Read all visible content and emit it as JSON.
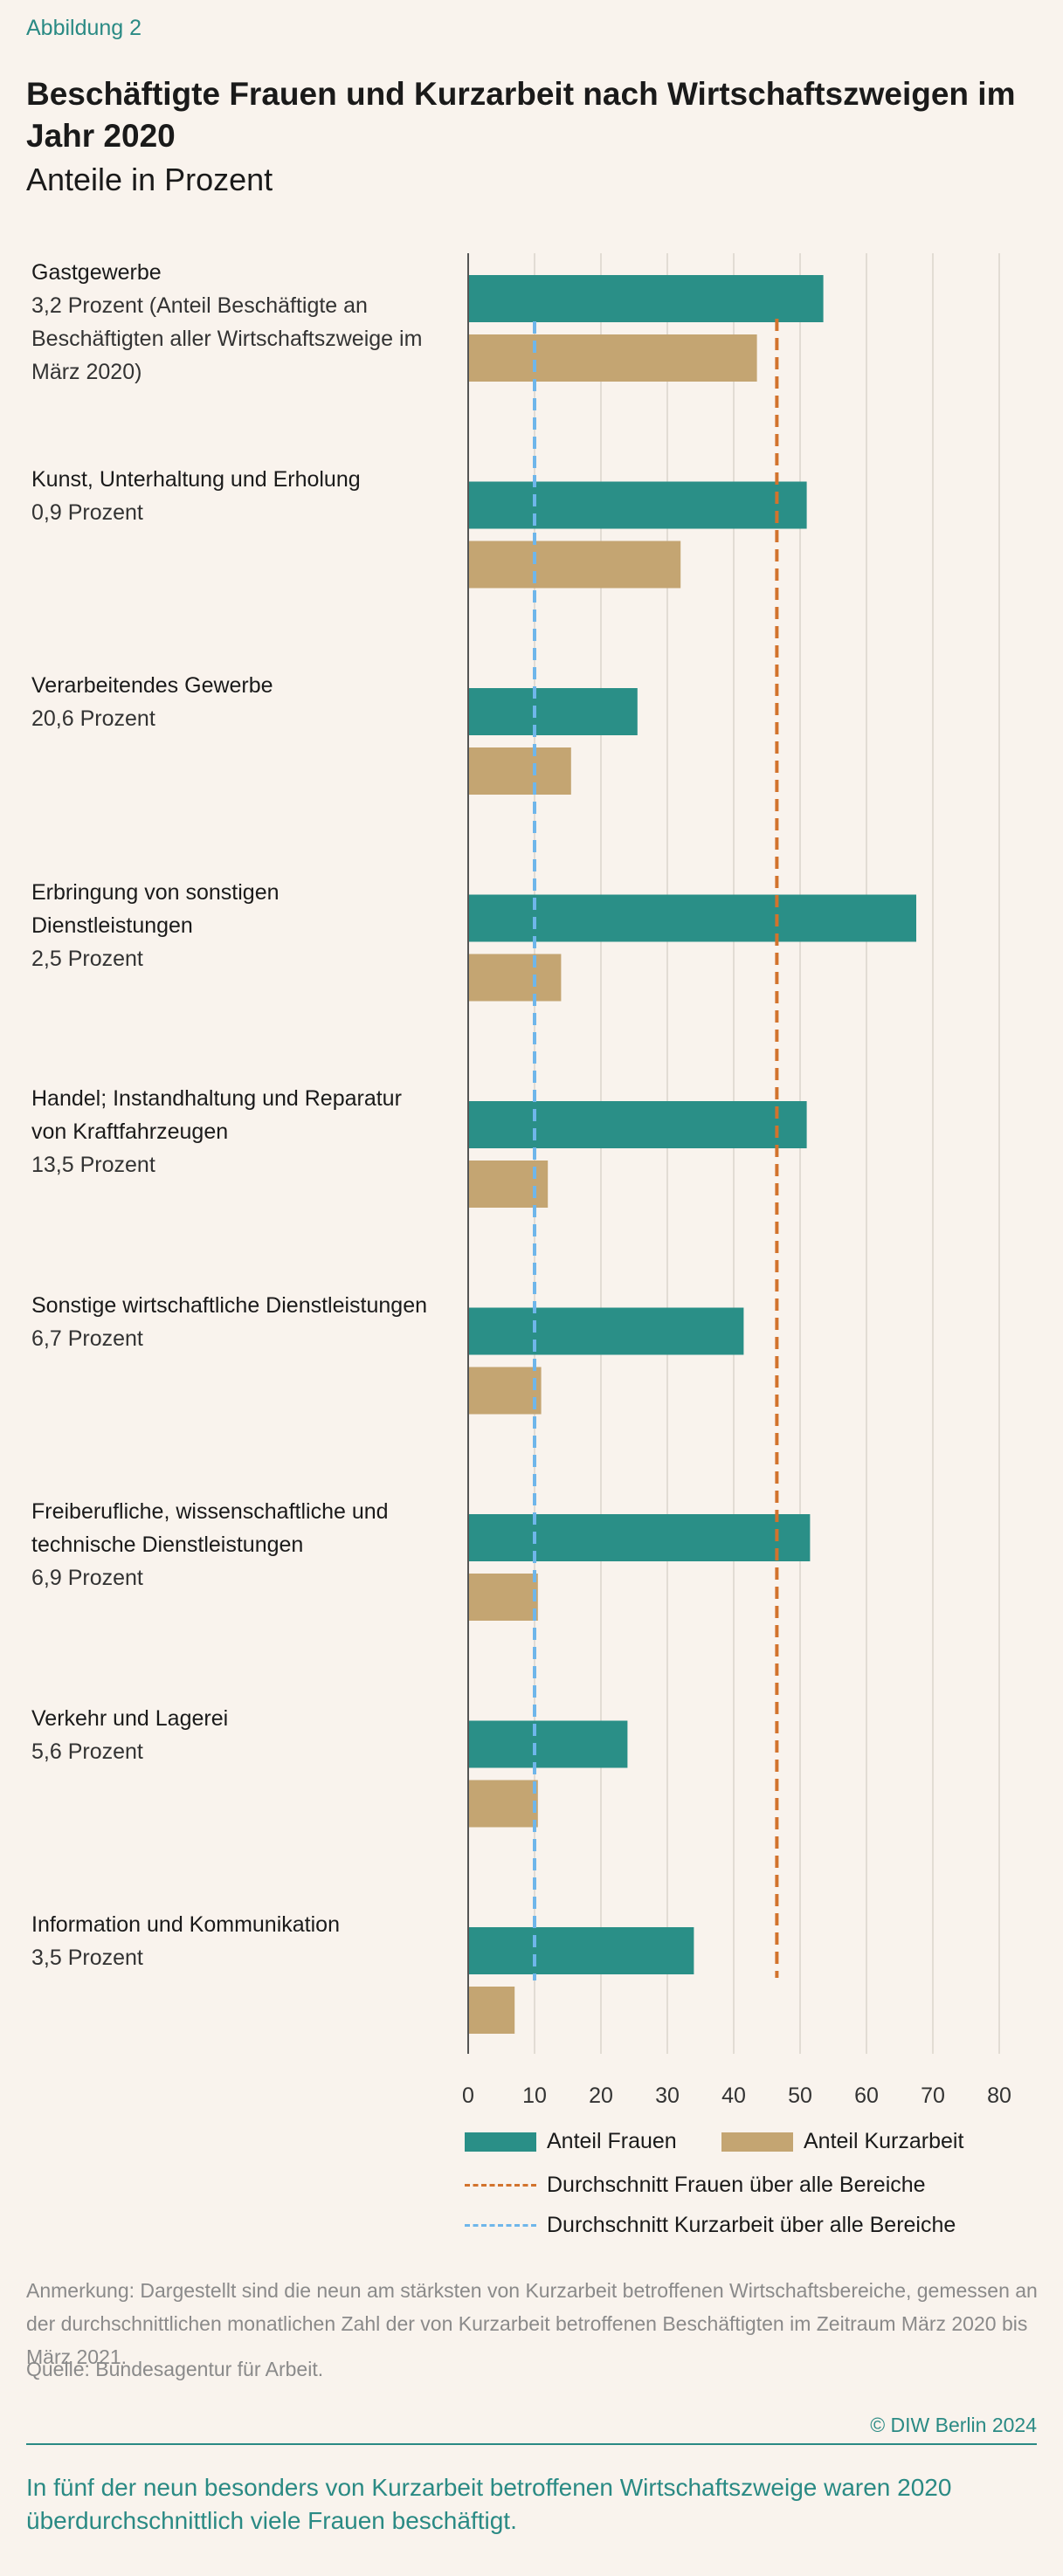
{
  "figure_label": "Abbildung 2",
  "title": "Beschäftigte Frauen und Kurzarbeit nach Wirtschaftszweigen im Jahr 2020",
  "subtitle": "Anteile in Prozent",
  "chart_data": {
    "type": "bar",
    "orientation": "horizontal",
    "categories": [
      {
        "name": "Gastgewerbe",
        "share": "3,2 Prozent (Anteil Beschäftigte an Beschäftigten aller Wirtschaftszweige im März 2020)"
      },
      {
        "name": "Kunst, Unterhaltung und Erholung",
        "share": "0,9 Prozent"
      },
      {
        "name": "Verarbeitendes Gewerbe",
        "share": "20,6 Prozent"
      },
      {
        "name": "Erbringung von sonstigen Dienstleistungen",
        "share": "2,5 Prozent"
      },
      {
        "name": "Handel; Instandhaltung und Reparatur von Kraftfahrzeugen",
        "share": "13,5 Prozent"
      },
      {
        "name": "Sonstige wirtschaftliche Dienstleistungen",
        "share": "6,7 Prozent"
      },
      {
        "name": "Freiberufliche, wissenschaftliche und technische Dienstleistungen",
        "share": "6,9 Prozent"
      },
      {
        "name": "Verkehr und Lagerei",
        "share": "5,6 Prozent"
      },
      {
        "name": "Information und Kommunikation",
        "share": "3,5 Prozent"
      }
    ],
    "series": [
      {
        "name": "Anteil Frauen",
        "color": "#2a8f87",
        "values": [
          53.5,
          51,
          25.5,
          67.5,
          51,
          41.5,
          51.5,
          24,
          34
        ]
      },
      {
        "name": "Anteil Kurzarbeit",
        "color": "#c4a572",
        "values": [
          43.5,
          32,
          15.5,
          14,
          12,
          11,
          10.5,
          10.5,
          7
        ]
      }
    ],
    "reference_lines": [
      {
        "name": "Durchschnitt Frauen über alle Bereiche",
        "value": 46.5,
        "color": "#d2732d"
      },
      {
        "name": "Durchschnitt Kurzarbeit über alle Bereiche",
        "value": 10,
        "color": "#6fb6ea"
      }
    ],
    "x_ticks": [
      "0",
      "10",
      "20",
      "30",
      "40",
      "50",
      "60",
      "70",
      "80"
    ],
    "xlim": [
      0,
      80
    ],
    "grid": true,
    "legend_position": "bottom"
  },
  "note": "Anmerkung: Dargestellt sind die neun am stärksten von Kurzarbeit betroffenen Wirtschaftsbereiche, gemessen an der durchschnittlichen monatlichen Zahl der von Kurzarbeit betroffenen Beschäftigten im Zeitraum März 2020 bis März 2021.",
  "source": "Quelle: Bundesagentur für Arbeit.",
  "copyright": "© DIW Berlin 2024",
  "takeaway": "In fünf der neun besonders von Kurzarbeit betroffenen Wirtschaftszweige waren 2020 überdurchschnittlich viele Frauen beschäftigt."
}
